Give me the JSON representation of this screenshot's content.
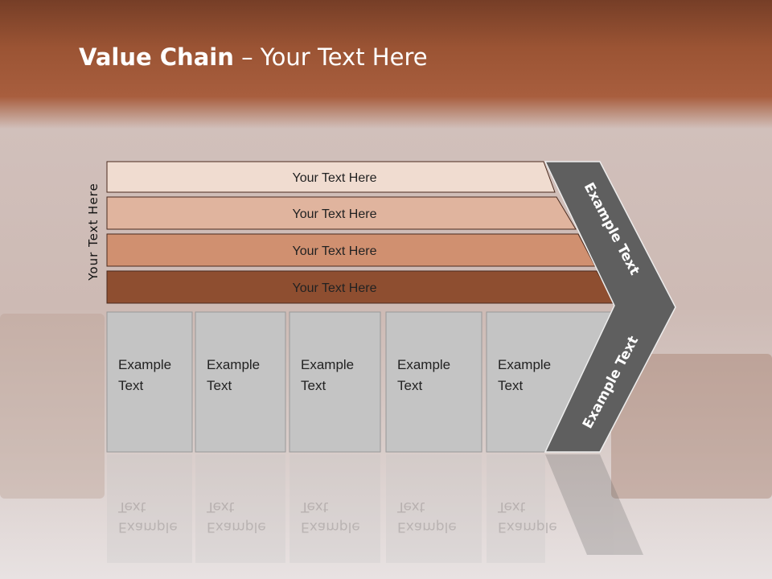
{
  "title": {
    "bold": "Value Chain",
    "rest": " – Your Text Here"
  },
  "side_label": "Your Text Here",
  "bars": [
    {
      "label": "Your Text Here",
      "color": "#f0dcd0"
    },
    {
      "label": "Your Text Here",
      "color": "#e0b49e"
    },
    {
      "label": "Your Text Here",
      "color": "#d09070"
    },
    {
      "label": "Your Text Here",
      "color": "#8e4e30"
    }
  ],
  "boxes": [
    {
      "line1": "Example",
      "line2": "Text"
    },
    {
      "line1": "Example",
      "line2": "Text"
    },
    {
      "line1": "Example",
      "line2": "Text"
    },
    {
      "line1": "Example",
      "line2": "Text"
    },
    {
      "line1": "Example",
      "line2": "Text"
    }
  ],
  "chevron": {
    "top_label": "Example Text",
    "bottom_label": "Example Text",
    "color": "#5f5f5f"
  },
  "box_color": "#c4c4c4"
}
